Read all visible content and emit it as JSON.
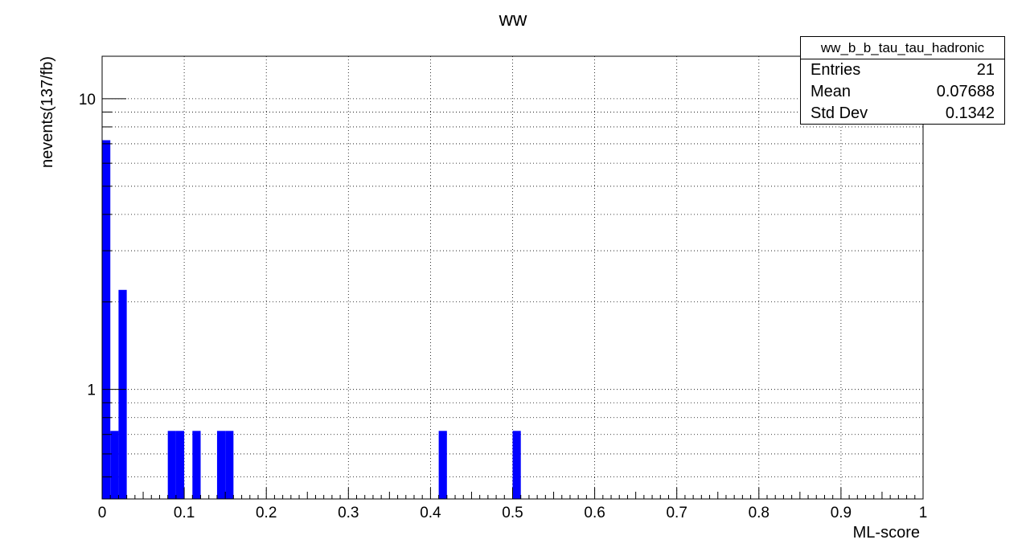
{
  "chart_data": {
    "type": "bar",
    "title": "ww",
    "xlabel": "ML-score",
    "ylabel": "nevents(137/fb)",
    "xlim": [
      0,
      1
    ],
    "ylim": [
      0.42,
      14
    ],
    "yscale": "log",
    "grid": true,
    "bin_width": 0.01,
    "x_ticks": [
      "0",
      "0.1",
      "0.2",
      "0.3",
      "0.4",
      "0.5",
      "0.6",
      "0.7",
      "0.8",
      "0.9",
      "1"
    ],
    "y_ticks": [
      "1",
      "10"
    ],
    "bar_color": "#0000ff",
    "bins": [
      {
        "x": 0.0,
        "value": 7.2
      },
      {
        "x": 0.01,
        "value": 0.72
      },
      {
        "x": 0.02,
        "value": 2.2
      },
      {
        "x": 0.08,
        "value": 0.72
      },
      {
        "x": 0.09,
        "value": 0.72
      },
      {
        "x": 0.11,
        "value": 0.72
      },
      {
        "x": 0.14,
        "value": 0.72
      },
      {
        "x": 0.15,
        "value": 0.72
      },
      {
        "x": 0.41,
        "value": 0.72
      },
      {
        "x": 0.5,
        "value": 0.72
      }
    ],
    "stats": {
      "name": "ww_b_b_tau_tau_hadronic",
      "rows": [
        {
          "label": "Entries",
          "value": "21"
        },
        {
          "label": "Mean",
          "value": "0.07688"
        },
        {
          "label": "Std Dev",
          "value": "0.1342"
        }
      ]
    }
  }
}
